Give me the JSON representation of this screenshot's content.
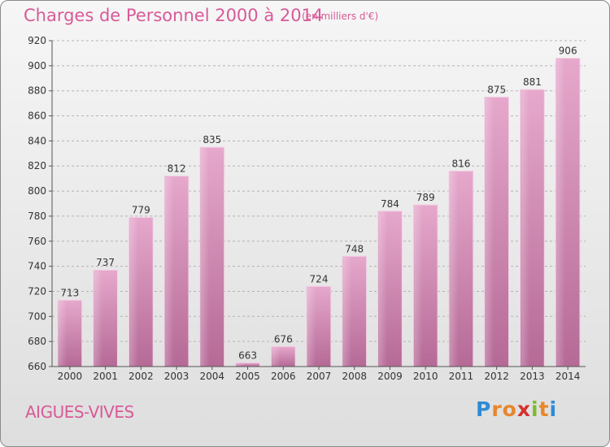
{
  "header": {
    "title": "Charges de Personnel 2000 à 2014",
    "unit": "(en milliers d'€)"
  },
  "footer": {
    "commune": "AIGUES-VIVES",
    "logo_letters": [
      "P",
      "r",
      "o",
      "x",
      "i",
      "t",
      "i"
    ],
    "logo_colors": [
      "#2e8bd6",
      "#e8862a",
      "#e8862a",
      "#d6302e",
      "#7dbb2c",
      "#e8862a",
      "#2e8bd6"
    ]
  },
  "chart_data": {
    "type": "bar",
    "title": "Charges de Personnel 2000 à 2014",
    "subtitle": "(en milliers d'€)",
    "categories": [
      "2000",
      "2001",
      "2002",
      "2003",
      "2004",
      "2005",
      "2006",
      "2007",
      "2008",
      "2009",
      "2010",
      "2011",
      "2012",
      "2013",
      "2014"
    ],
    "values": [
      713,
      737,
      779,
      812,
      835,
      663,
      676,
      724,
      748,
      784,
      789,
      816,
      875,
      881,
      906
    ],
    "ylim": [
      660,
      920
    ],
    "yticks": [
      660,
      680,
      700,
      720,
      740,
      760,
      780,
      800,
      820,
      840,
      860,
      880,
      900,
      920
    ],
    "grid": true,
    "bar_color": "#d783b3"
  }
}
